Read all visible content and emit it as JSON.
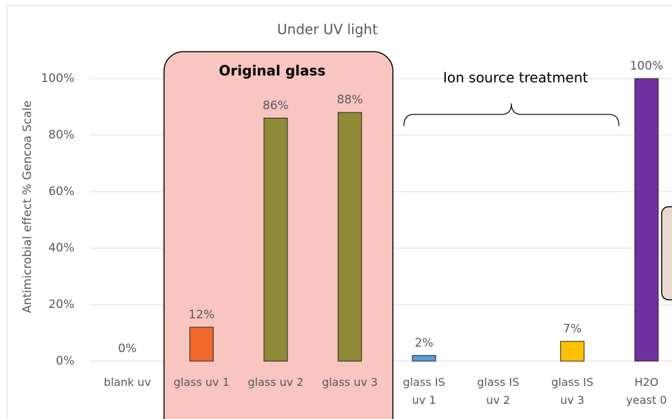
{
  "chart_data": {
    "type": "bar",
    "title": "Under UV light",
    "y_label": "Antimicrobial effect % Gencoa Scale",
    "annotations": [
      "Original glass",
      "Ion source treatment"
    ],
    "categories": [
      "blank uv",
      "glass uv 1",
      "glass uv 2",
      "glass uv 3",
      "glass IS uv 1",
      "glass IS uv 2",
      "glass IS uv 3",
      "H2O yeast 0"
    ],
    "values": [
      0,
      12,
      86,
      88,
      2,
      null,
      7,
      100
    ],
    "value_labels": [
      "0%",
      "12%",
      "86%",
      "88%",
      "2%",
      null,
      "7%",
      "100%"
    ],
    "colors": [
      "#ffffff",
      "#f0682a",
      "#8f8a37",
      "#8f8a37",
      "#5b9bd5",
      "#ffffff",
      "#ffc000",
      "#7030a0"
    ],
    "ylim": [
      0,
      100
    ],
    "yticks": [
      {
        "value": 0,
        "label": "0%"
      },
      {
        "value": 20,
        "label": "20%"
      },
      {
        "value": 40,
        "label": "40%"
      },
      {
        "value": 60,
        "label": "60%"
      },
      {
        "value": 80,
        "label": "80%"
      },
      {
        "value": 100,
        "label": "100%"
      }
    ],
    "grid": true
  }
}
